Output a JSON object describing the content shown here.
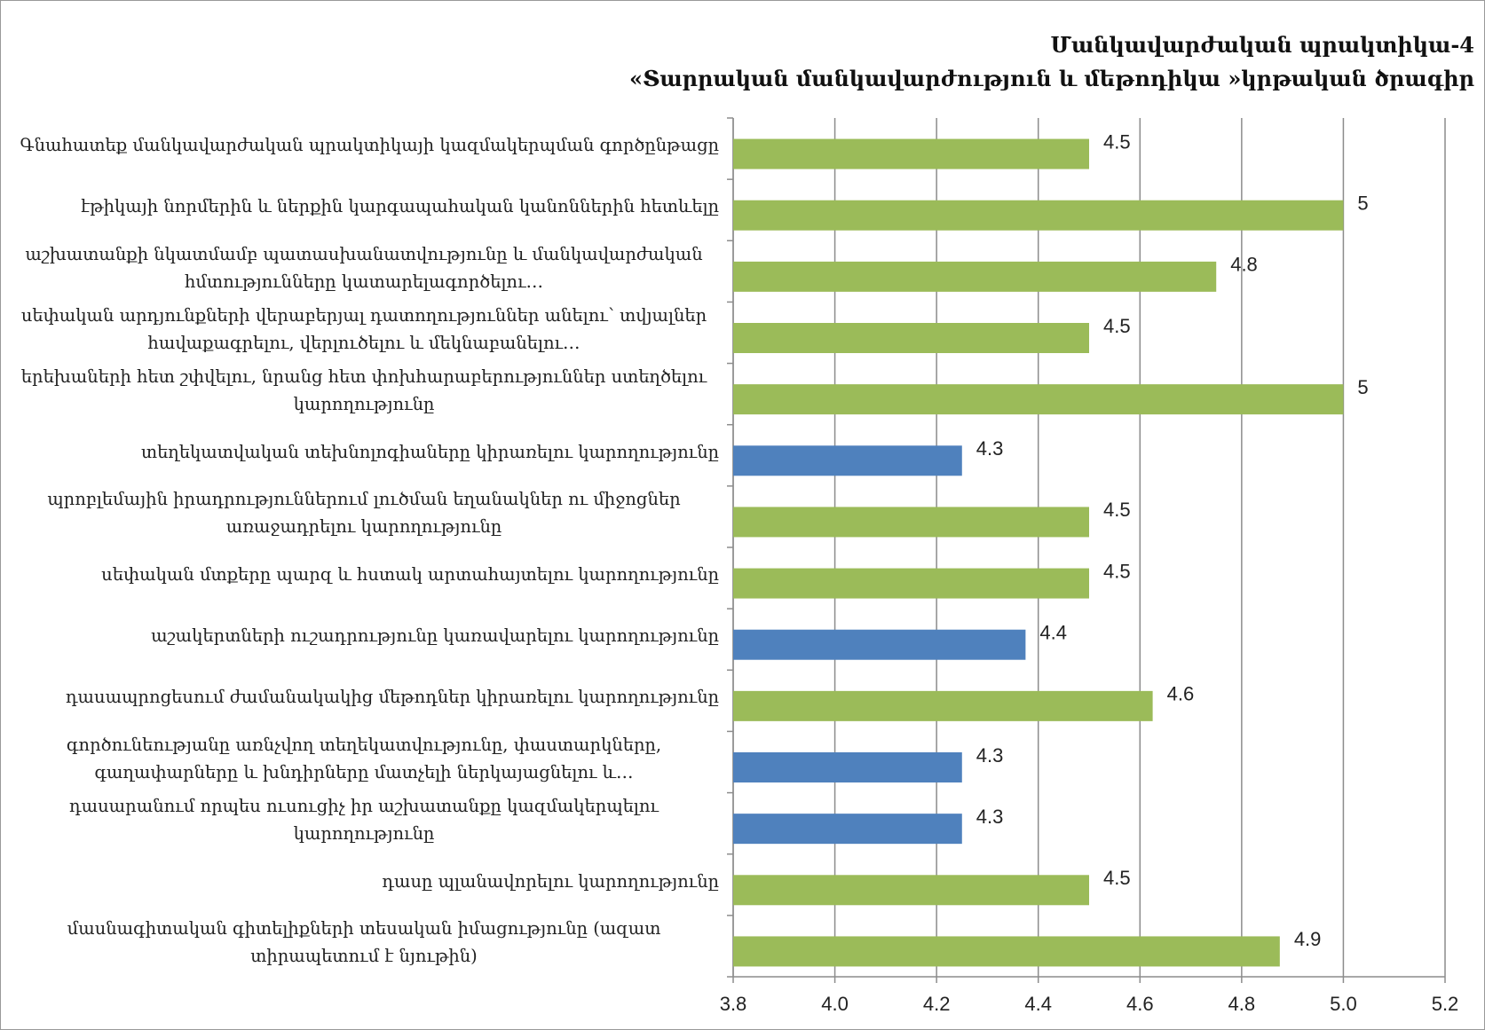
{
  "chart_data": {
    "type": "bar",
    "orientation": "horizontal",
    "title": "Մանկավարժական պրակտիկա-4",
    "subtitle": "«Տարրական մանկավարժություն և մեթոդիկա »կրթական ծրագիր",
    "categories": [
      "Գնահատեք մանկավարժական պրակտիկայի կազմակերպման գործընթացը",
      "էթիկայի նորմերին և ներքին կարգապահական կանոններին հետևելը",
      "աշխատանքի նկատմամբ պատասխանատվությունը և մանկավարժական հմտությունները կատարելագործելու…",
      "սեփական արդյունքների վերաբերյալ դատողություններ անելու՝ տվյալներ հավաքագրելու, վերլուծելու և մեկնաբանելու…",
      "երեխաների հետ շփվելու, նրանց հետ փոխհարաբերություններ ստեղծելու կարողությունը",
      "տեղեկատվական տեխնոլոգիաները կիրառելու կարողությունը",
      "պրոբլեմային իրադրություններում լուծման եղանակներ ու միջոցներ առաջադրելու կարողությունը",
      "սեփական մտքերը պարզ և հստակ արտահայտելու կարողությունը",
      "աշակերտների ուշադրությունը կառավարելու կարողությունը",
      "դասապրոցեսում ժամանակակից մեթոդներ կիրառելու կարողությունը",
      "գործունեությանը առնչվող տեղեկատվությունը, փաստարկները, գաղափարները և խնդիրները մատչելի ներկայացնելու և…",
      "դասարանում որպես ուսուցիչ իր աշխատանքը կազմակերպելու կարողությունը",
      "դասը պլանավորելու կարողությունը",
      "մասնագիտական գիտելիքների տեսական իմացությունը (ազատ տիրապետում է նյութին)"
    ],
    "values": [
      4.5,
      5,
      4.75,
      4.5,
      5,
      4.25,
      4.5,
      4.5,
      4.375,
      4.625,
      4.25,
      4.25,
      4.5,
      4.875
    ],
    "value_labels": [
      "4.5",
      "5",
      "4.8",
      "4.5",
      "5",
      "4.3",
      "4.5",
      "4.5",
      "4.4",
      "4.6",
      "4.3",
      "4.3",
      "4.5",
      "4.9"
    ],
    "colors": [
      "#9bbb59",
      "#9bbb59",
      "#9bbb59",
      "#9bbb59",
      "#9bbb59",
      "#4f81bd",
      "#9bbb59",
      "#9bbb59",
      "#4f81bd",
      "#9bbb59",
      "#4f81bd",
      "#4f81bd",
      "#9bbb59",
      "#9bbb59"
    ],
    "xlim": [
      3.8,
      5.2
    ],
    "xticks": [
      3.8,
      {
        "value": 4,
        "label": "4.0"
      },
      4.2,
      4.4,
      4.6,
      4.8,
      {
        "value": 5,
        "label": "5.0"
      },
      5.2
    ],
    "grid": true
  }
}
